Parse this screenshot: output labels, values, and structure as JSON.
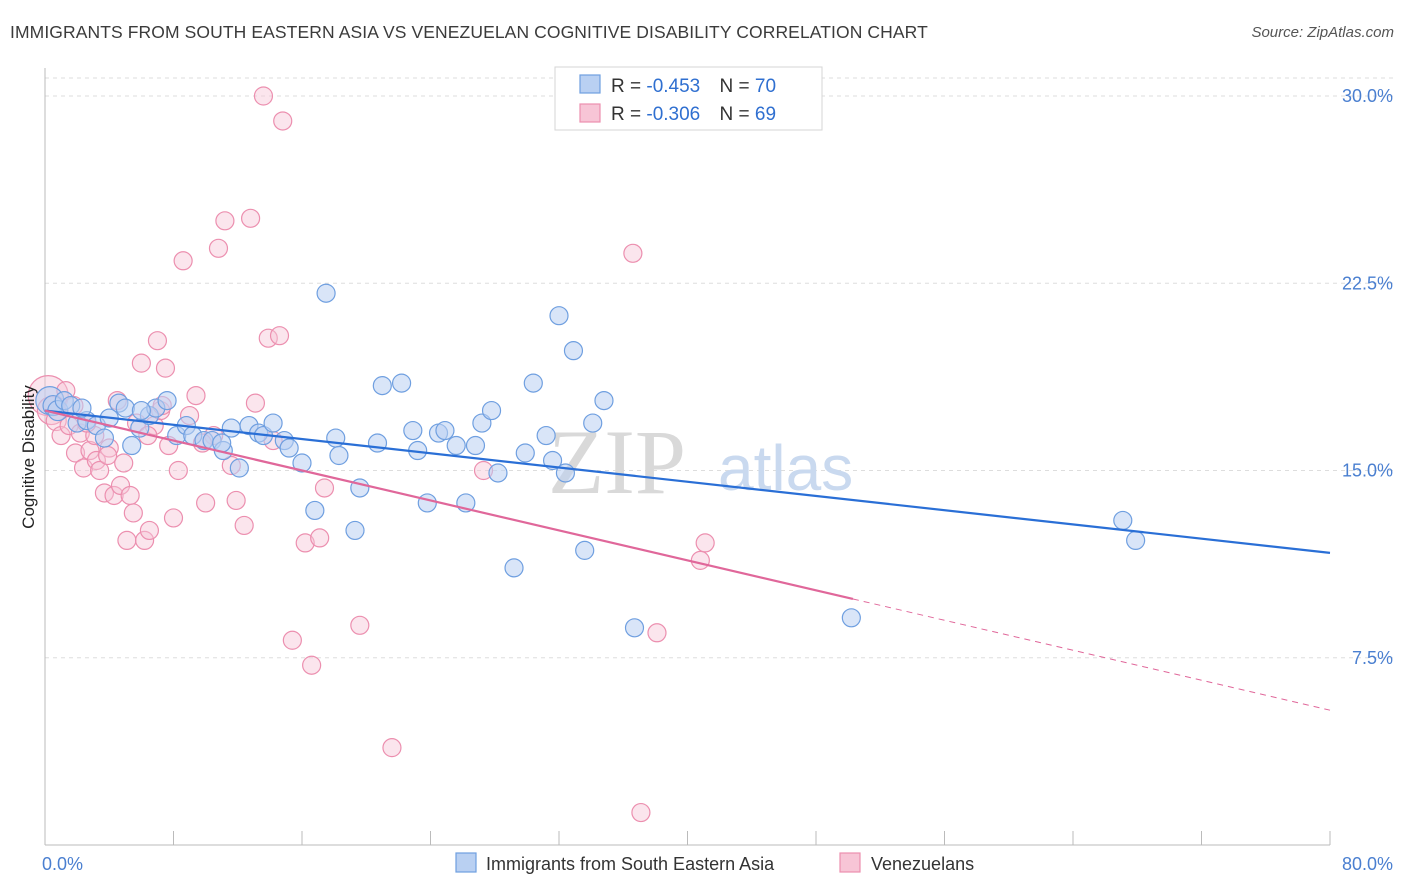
{
  "header": {
    "title": "IMMIGRANTS FROM SOUTH EASTERN ASIA VS VENEZUELAN COGNITIVE DISABILITY CORRELATION CHART",
    "source": "Source: ZipAtlas.com"
  },
  "watermark": {
    "zip": "ZIP",
    "atlas": "atlas"
  },
  "legend": {
    "rows": [
      {
        "r_label": "R = ",
        "r_value": "-0.453",
        "n_label": "N = ",
        "n_value": "70"
      },
      {
        "r_label": "R = ",
        "r_value": "-0.306",
        "n_label": "N = ",
        "n_value": "69"
      }
    ]
  },
  "colors": {
    "blue": "#6f9fe0",
    "blue_fill": "#b9d0f2",
    "blue_line": "#2a6fd6",
    "pink": "#ec8faf",
    "pink_fill": "#f7c5d6",
    "pink_line": "#e0679a",
    "grid": "#dddddd",
    "tick_text": "#4a7fd0"
  },
  "chart_data": {
    "type": "scatter",
    "title": "IMMIGRANTS FROM SOUTH EASTERN ASIA VS VENEZUELAN COGNITIVE DISABILITY CORRELATION CHART",
    "xlabel": "",
    "ylabel": "Cognitive Disability",
    "xlim": [
      0,
      80
    ],
    "ylim": [
      0,
      30
    ],
    "x_ticks": [
      "0.0%",
      "80.0%"
    ],
    "y_ticks": [
      {
        "value": 7.5,
        "label": "7.5%"
      },
      {
        "value": 15.0,
        "label": "15.0%"
      },
      {
        "value": 22.5,
        "label": "22.5%"
      },
      {
        "value": 30.0,
        "label": "30.0%"
      }
    ],
    "grid": true,
    "legend_position": "top-center",
    "series": [
      {
        "name": "Immigrants from South Eastern Asia",
        "color": "#6f9fe0",
        "trend": {
          "x0": 0,
          "y0": 17.4,
          "x1": 80,
          "y1": 11.7,
          "dashed_from": null
        },
        "points": [
          [
            0.3,
            17.8,
            14
          ],
          [
            0.5,
            17.6,
            10
          ],
          [
            0.8,
            17.4,
            10
          ],
          [
            1.2,
            17.8,
            9
          ],
          [
            1.6,
            17.6,
            9
          ],
          [
            2.0,
            16.9,
            9
          ],
          [
            2.6,
            17.0,
            9
          ],
          [
            3.2,
            16.8,
            9
          ],
          [
            3.7,
            16.3,
            9
          ],
          [
            4.0,
            17.1,
            9
          ],
          [
            4.6,
            17.7,
            9
          ],
          [
            5.0,
            17.5,
            9
          ],
          [
            5.4,
            16.0,
            9
          ],
          [
            5.9,
            16.7,
            9
          ],
          [
            6.5,
            17.2,
            9
          ],
          [
            6.9,
            17.5,
            9
          ],
          [
            7.6,
            17.8,
            9
          ],
          [
            8.2,
            16.4,
            9
          ],
          [
            8.8,
            16.8,
            9
          ],
          [
            9.2,
            16.4,
            9
          ],
          [
            9.9,
            16.2,
            9
          ],
          [
            10.4,
            16.2,
            9
          ],
          [
            11.1,
            15.8,
            9
          ],
          [
            11.6,
            16.7,
            9
          ],
          [
            12.1,
            15.1,
            9
          ],
          [
            12.7,
            16.8,
            9
          ],
          [
            13.3,
            16.5,
            9
          ],
          [
            13.6,
            16.4,
            9
          ],
          [
            14.2,
            16.9,
            9
          ],
          [
            14.9,
            16.2,
            9
          ],
          [
            15.2,
            15.9,
            9
          ],
          [
            16.0,
            15.3,
            9
          ],
          [
            16.8,
            13.4,
            9
          ],
          [
            17.5,
            22.1,
            9
          ],
          [
            18.1,
            16.3,
            9
          ],
          [
            18.3,
            15.6,
            9
          ],
          [
            19.3,
            12.6,
            9
          ],
          [
            19.6,
            14.3,
            9
          ],
          [
            20.7,
            16.1,
            9
          ],
          [
            21.0,
            18.4,
            9
          ],
          [
            22.2,
            18.5,
            9
          ],
          [
            22.9,
            16.6,
            9
          ],
          [
            23.2,
            15.8,
            9
          ],
          [
            23.8,
            13.7,
            9
          ],
          [
            24.5,
            16.5,
            9
          ],
          [
            24.9,
            16.6,
            9
          ],
          [
            25.6,
            16.0,
            9
          ],
          [
            26.2,
            13.7,
            9
          ],
          [
            26.8,
            16.0,
            9
          ],
          [
            27.2,
            16.9,
            9
          ],
          [
            27.8,
            17.4,
            9
          ],
          [
            28.2,
            14.9,
            9
          ],
          [
            29.2,
            11.1,
            9
          ],
          [
            29.9,
            15.7,
            9
          ],
          [
            30.4,
            18.5,
            9
          ],
          [
            31.2,
            16.4,
            9
          ],
          [
            31.6,
            15.4,
            9
          ],
          [
            32.0,
            21.2,
            9
          ],
          [
            32.4,
            14.9,
            9
          ],
          [
            32.9,
            19.8,
            9
          ],
          [
            33.6,
            11.8,
            9
          ],
          [
            34.1,
            16.9,
            9
          ],
          [
            34.8,
            17.8,
            9
          ],
          [
            36.7,
            8.7,
            9
          ],
          [
            50.2,
            9.1,
            9
          ],
          [
            67.1,
            13.0,
            9
          ],
          [
            67.9,
            12.2,
            9
          ],
          [
            6.0,
            17.4,
            9
          ],
          [
            11.0,
            16.1,
            9
          ],
          [
            2.3,
            17.5,
            9
          ]
        ]
      },
      {
        "name": "Venezuelans",
        "color": "#ec8faf",
        "trend": {
          "x0": 0,
          "y0": 17.4,
          "x1": 80,
          "y1": 5.4,
          "dashed_from": 50.3
        },
        "points": [
          [
            0.2,
            18.0,
            20
          ],
          [
            0.4,
            17.4,
            14
          ],
          [
            0.7,
            17.0,
            10
          ],
          [
            1.0,
            16.4,
            9
          ],
          [
            1.3,
            18.2,
            9
          ],
          [
            1.5,
            16.8,
            9
          ],
          [
            1.9,
            15.7,
            9
          ],
          [
            2.2,
            16.5,
            9
          ],
          [
            2.4,
            15.1,
            9
          ],
          [
            2.8,
            15.8,
            9
          ],
          [
            3.1,
            16.4,
            9
          ],
          [
            3.2,
            15.4,
            9
          ],
          [
            3.4,
            15.0,
            9
          ],
          [
            3.7,
            14.1,
            9
          ],
          [
            4.0,
            15.9,
            9
          ],
          [
            4.3,
            14.0,
            9
          ],
          [
            4.5,
            17.8,
            9
          ],
          [
            4.7,
            14.4,
            9
          ],
          [
            4.9,
            15.3,
            9
          ],
          [
            5.1,
            12.2,
            9
          ],
          [
            5.3,
            14.0,
            9
          ],
          [
            5.5,
            13.3,
            9
          ],
          [
            5.7,
            16.9,
            9
          ],
          [
            6.0,
            19.3,
            9
          ],
          [
            6.2,
            12.2,
            9
          ],
          [
            6.5,
            12.6,
            9
          ],
          [
            6.8,
            16.8,
            9
          ],
          [
            7.0,
            20.2,
            9
          ],
          [
            7.2,
            17.4,
            9
          ],
          [
            7.5,
            19.1,
            9
          ],
          [
            7.7,
            16.0,
            9
          ],
          [
            8.0,
            13.1,
            9
          ],
          [
            8.3,
            15.0,
            9
          ],
          [
            8.6,
            23.4,
            9
          ],
          [
            9.0,
            17.2,
            9
          ],
          [
            9.4,
            18.0,
            9
          ],
          [
            10.0,
            13.7,
            9
          ],
          [
            10.5,
            16.4,
            9
          ],
          [
            10.8,
            23.9,
            9
          ],
          [
            11.2,
            25.0,
            9
          ],
          [
            11.9,
            13.8,
            9
          ],
          [
            12.4,
            12.8,
            9
          ],
          [
            12.8,
            25.1,
            9
          ],
          [
            13.1,
            17.7,
            9
          ],
          [
            13.6,
            30.0,
            9
          ],
          [
            13.9,
            20.3,
            9
          ],
          [
            14.2,
            16.2,
            9
          ],
          [
            14.6,
            20.4,
            9
          ],
          [
            14.8,
            29.0,
            9
          ],
          [
            15.4,
            8.2,
            9
          ],
          [
            16.2,
            12.1,
            9
          ],
          [
            16.6,
            7.2,
            9
          ],
          [
            17.1,
            12.3,
            9
          ],
          [
            17.4,
            14.3,
            9
          ],
          [
            19.6,
            8.8,
            9
          ],
          [
            21.6,
            3.9,
            9
          ],
          [
            27.3,
            15.0,
            9
          ],
          [
            37.1,
            1.3,
            9
          ],
          [
            36.6,
            23.7,
            9
          ],
          [
            38.1,
            8.5,
            9
          ],
          [
            40.8,
            11.4,
            9
          ],
          [
            41.1,
            12.1,
            9
          ],
          [
            1.8,
            17.6,
            9
          ],
          [
            2.6,
            16.9,
            9
          ],
          [
            6.4,
            16.4,
            9
          ],
          [
            9.8,
            16.1,
            9
          ],
          [
            11.6,
            15.2,
            9
          ],
          [
            7.3,
            17.6,
            9
          ],
          [
            3.9,
            15.6,
            9
          ]
        ]
      }
    ]
  }
}
